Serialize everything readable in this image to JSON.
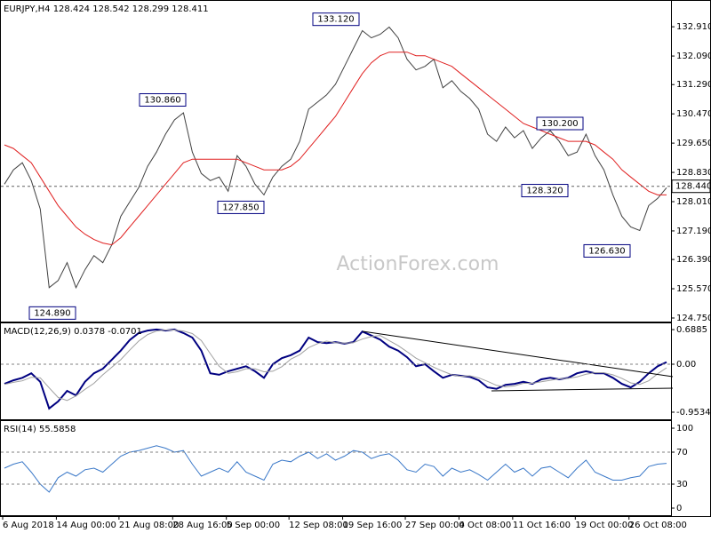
{
  "chart_data": [
    {
      "type": "line",
      "header": "EURJPY,H4  128.424 128.542 128.299 128.411",
      "watermark": "ActionForex.com",
      "categories": [
        "6 Aug 2018",
        null,
        null,
        null,
        null,
        null,
        "14 Aug 00:00",
        null,
        null,
        null,
        null,
        null,
        null,
        "21 Aug 08:00",
        null,
        null,
        null,
        null,
        null,
        "28 Aug 16:00",
        null,
        null,
        null,
        null,
        null,
        "5 Sep 00:00",
        null,
        null,
        null,
        null,
        null,
        null,
        "12 Sep 08:00",
        null,
        null,
        null,
        null,
        null,
        "19 Sep 16:00",
        null,
        null,
        null,
        null,
        null,
        null,
        "27 Sep 00:00",
        null,
        null,
        null,
        null,
        null,
        "4 Oct 08:00",
        null,
        null,
        null,
        null,
        null,
        "11 Oct 16:00",
        null,
        null,
        null,
        null,
        null,
        null,
        "19 Oct 00:00",
        null,
        null,
        null,
        null,
        null,
        "26 Oct 08:00",
        null,
        null,
        null,
        null
      ],
      "series": [
        {
          "color": "#404040",
          "values": [
            128.5,
            128.9,
            129.1,
            128.6,
            127.8,
            125.6,
            125.8,
            126.3,
            125.6,
            126.1,
            126.5,
            126.3,
            126.8,
            127.6,
            128.0,
            128.4,
            129.0,
            129.4,
            129.9,
            130.3,
            130.5,
            129.4,
            128.8,
            128.6,
            128.7,
            128.3,
            129.3,
            129.0,
            128.5,
            128.2,
            128.7,
            129.0,
            129.2,
            129.7,
            130.6,
            130.8,
            131.0,
            131.3,
            131.8,
            132.3,
            132.8,
            132.6,
            132.7,
            132.9,
            132.6,
            132.0,
            131.7,
            131.8,
            132.0,
            131.2,
            131.4,
            131.1,
            130.9,
            130.6,
            129.9,
            129.7,
            130.1,
            129.8,
            130.0,
            129.5,
            129.8,
            130.0,
            129.7,
            129.3,
            129.4,
            129.9,
            129.3,
            128.9,
            128.2,
            127.6,
            127.3,
            127.2,
            127.9,
            128.1,
            128.4
          ]
        },
        {
          "color": "#e02020",
          "values": [
            129.6,
            129.5,
            129.3,
            129.1,
            128.7,
            128.3,
            127.9,
            127.6,
            127.3,
            127.1,
            126.95,
            126.85,
            126.8,
            127.0,
            127.3,
            127.6,
            127.9,
            128.2,
            128.5,
            128.8,
            129.1,
            129.2,
            129.2,
            129.2,
            129.2,
            129.2,
            129.2,
            129.1,
            129.0,
            128.9,
            128.9,
            128.9,
            129.0,
            129.2,
            129.5,
            129.8,
            130.1,
            130.4,
            130.8,
            131.2,
            131.6,
            131.9,
            132.1,
            132.2,
            132.2,
            132.2,
            132.1,
            132.1,
            132.0,
            131.9,
            131.8,
            131.6,
            131.4,
            131.2,
            131.0,
            130.8,
            130.6,
            130.4,
            130.2,
            130.1,
            130.0,
            129.9,
            129.8,
            129.7,
            129.7,
            129.7,
            129.6,
            129.4,
            129.2,
            128.9,
            128.7,
            128.5,
            128.3,
            128.2,
            128.2
          ]
        }
      ],
      "ylim": [
        124.65,
        133.61
      ],
      "yticks": [
        {
          "value": 132.91,
          "label": "132.910"
        },
        {
          "value": 132.09,
          "label": "132.090"
        },
        {
          "value": 131.29,
          "label": "131.290"
        },
        {
          "value": 130.47,
          "label": "130.470"
        },
        {
          "value": 129.65,
          "label": "129.650"
        },
        {
          "value": 128.83,
          "label": "128.830"
        },
        {
          "value": 128.01,
          "label": "128.010"
        },
        {
          "value": 127.19,
          "label": "127.190"
        },
        {
          "value": 126.39,
          "label": "126.390"
        },
        {
          "value": 125.57,
          "label": "125.570"
        },
        {
          "value": 124.75,
          "label": "124.750"
        }
      ],
      "last": {
        "value": 128.44,
        "label": "128.440"
      },
      "annotations": [
        {
          "value": 133.12,
          "label": "133.120"
        },
        {
          "value": 130.86,
          "label": "130.860"
        },
        {
          "value": 127.85,
          "label": "127.850"
        },
        {
          "value": 124.89,
          "label": "124.890"
        },
        {
          "value": 130.2,
          "label": "130.200"
        },
        {
          "value": 128.32,
          "label": "128.320"
        },
        {
          "value": 126.63,
          "label": "126.630"
        }
      ]
    },
    {
      "type": "line",
      "header": "MACD(12,26,9) 0.0378 -0.0701",
      "series": [
        {
          "color": "#000080",
          "values": [
            -0.39,
            -0.32,
            -0.27,
            -0.18,
            -0.35,
            -0.88,
            -0.74,
            -0.53,
            -0.62,
            -0.35,
            -0.18,
            -0.09,
            0.09,
            0.27,
            0.48,
            0.62,
            0.67,
            0.69,
            0.67,
            0.69,
            0.62,
            0.53,
            0.27,
            -0.18,
            -0.21,
            -0.14,
            -0.09,
            -0.04,
            -0.14,
            -0.27,
            0.0,
            0.12,
            0.18,
            0.27,
            0.53,
            0.44,
            0.42,
            0.44,
            0.41,
            0.44,
            0.65,
            0.57,
            0.49,
            0.35,
            0.27,
            0.14,
            -0.04,
            0.0,
            -0.14,
            -0.27,
            -0.21,
            -0.23,
            -0.25,
            -0.32,
            -0.46,
            -0.49,
            -0.41,
            -0.39,
            -0.35,
            -0.39,
            -0.3,
            -0.27,
            -0.3,
            -0.27,
            -0.18,
            -0.14,
            -0.18,
            -0.18,
            -0.27,
            -0.39,
            -0.46,
            -0.35,
            -0.18,
            -0.04,
            0.04
          ]
        },
        {
          "color": "#a0a0a0",
          "values": [
            -0.4,
            -0.36,
            -0.33,
            -0.26,
            -0.27,
            -0.47,
            -0.66,
            -0.72,
            -0.63,
            -0.5,
            -0.38,
            -0.21,
            -0.06,
            0.09,
            0.28,
            0.46,
            0.59,
            0.66,
            0.68,
            0.68,
            0.66,
            0.61,
            0.47,
            0.21,
            -0.04,
            -0.18,
            -0.15,
            -0.09,
            -0.09,
            -0.15,
            -0.14,
            -0.05,
            0.1,
            0.19,
            0.33,
            0.41,
            0.46,
            0.43,
            0.42,
            0.43,
            0.5,
            0.55,
            0.57,
            0.47,
            0.37,
            0.25,
            0.12,
            0.03,
            -0.06,
            -0.14,
            -0.21,
            -0.24,
            -0.23,
            -0.27,
            -0.34,
            -0.42,
            -0.45,
            -0.43,
            -0.38,
            -0.38,
            -0.35,
            -0.32,
            -0.29,
            -0.28,
            -0.25,
            -0.2,
            -0.17,
            -0.17,
            -0.21,
            -0.28,
            -0.37,
            -0.4,
            -0.33,
            -0.19,
            -0.07
          ]
        }
      ],
      "ylim": [
        -1.095,
        0.795
      ],
      "yticks": [
        0.6885,
        {
          "value": 0,
          "label": "0.00"
        },
        -0.9534
      ],
      "levels": [
        0
      ]
    },
    {
      "type": "line",
      "header": "RSI(14) 55.5858",
      "series": [
        {
          "color": "#3a78c8",
          "values": [
            50,
            55,
            58,
            45,
            30,
            20,
            38,
            45,
            40,
            48,
            50,
            45,
            55,
            65,
            70,
            72,
            75,
            78,
            75,
            70,
            72,
            55,
            40,
            45,
            50,
            45,
            58,
            45,
            40,
            35,
            55,
            60,
            58,
            65,
            70,
            62,
            68,
            60,
            65,
            72,
            70,
            62,
            66,
            68,
            60,
            48,
            45,
            55,
            52,
            40,
            50,
            45,
            48,
            42,
            35,
            45,
            55,
            45,
            50,
            40,
            50,
            52,
            45,
            38,
            50,
            60,
            45,
            40,
            35,
            35,
            38,
            40,
            52,
            55,
            56
          ]
        }
      ],
      "ylim": [
        -8.9,
        107.8
      ],
      "yticks": [
        100,
        70,
        30,
        0
      ],
      "levels": [
        70,
        30
      ]
    }
  ]
}
